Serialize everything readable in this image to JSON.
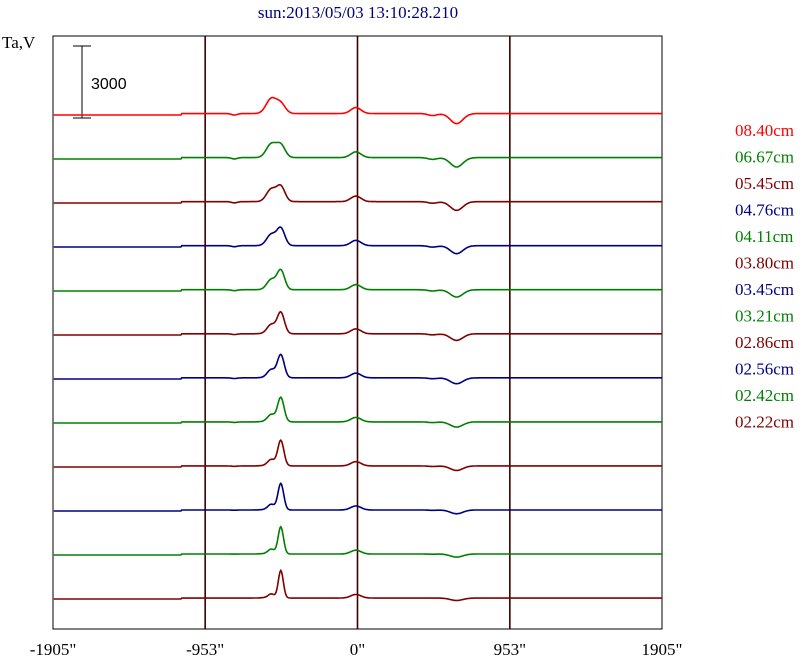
{
  "chart_data": {
    "type": "line",
    "title": "sun:2013/05/03 13:10:28.210",
    "ylabel": "Ta,V",
    "scale_bar_label": "3000",
    "scale_bar_value": 3000,
    "xlim": [
      -1905,
      1905
    ],
    "x_ticks": [
      {
        "value": -1905,
        "label": "-1905\""
      },
      {
        "value": -953,
        "label": "-953\""
      },
      {
        "value": 0,
        "label": "0\""
      },
      {
        "value": 953,
        "label": "953\""
      },
      {
        "value": 1905,
        "label": "1905\""
      }
    ],
    "vertical_lines": [
      -953,
      0,
      953
    ],
    "grid": false,
    "legend_position": "right",
    "series": [
      {
        "name": "08.40cm",
        "color": "#ff0000"
      },
      {
        "name": "06.67cm",
        "color": "#008000"
      },
      {
        "name": "05.45cm",
        "color": "#800000"
      },
      {
        "name": "04.76cm",
        "color": "#000080"
      },
      {
        "name": "04.11cm",
        "color": "#008000"
      },
      {
        "name": "03.80cm",
        "color": "#800000"
      },
      {
        "name": "03.45cm",
        "color": "#000080"
      },
      {
        "name": "03.21cm",
        "color": "#008000"
      },
      {
        "name": "02.86cm",
        "color": "#800000"
      },
      {
        "name": "02.56cm",
        "color": "#000080"
      },
      {
        "name": "02.42cm",
        "color": "#008000"
      },
      {
        "name": "02.22cm",
        "color": "#800000"
      }
    ]
  }
}
